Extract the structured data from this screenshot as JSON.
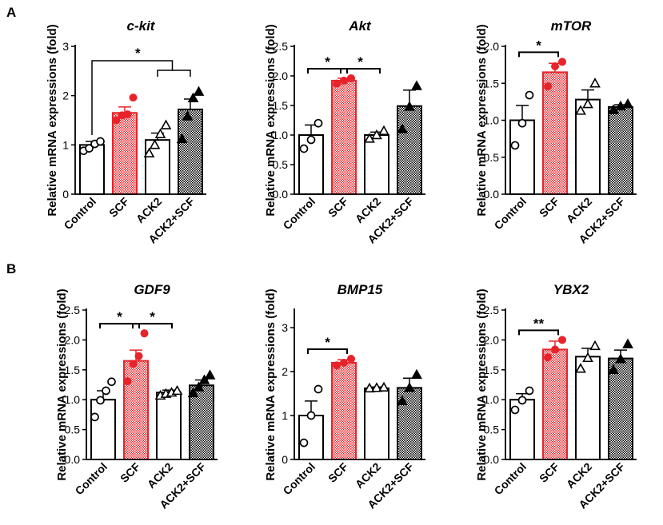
{
  "panels": {
    "a": "A",
    "b": "B"
  },
  "colors": {
    "red": "#e8232a",
    "black": "#000000",
    "white": "#ffffff"
  },
  "chart_data": [
    {
      "type": "bar",
      "title": "c-kit",
      "ylabel": "Relative mRNA expressions (fold)",
      "categories": [
        "Control",
        "SCF",
        "ACK2",
        "ACK2+SCF"
      ],
      "values": [
        1.0,
        1.65,
        1.1,
        1.72
      ],
      "errors": [
        0.07,
        0.12,
        0.14,
        0.21
      ],
      "points": [
        [
          0.88,
          0.93,
          1.02,
          1.07
        ],
        [
          1.5,
          1.6,
          1.62,
          1.96
        ],
        [
          0.83,
          1.0,
          1.22,
          1.4
        ],
        [
          1.12,
          1.58,
          1.95,
          2.08
        ]
      ],
      "ylim": [
        0,
        3
      ],
      "yticks": [
        "0",
        "1",
        "2",
        "3"
      ],
      "significance": [
        {
          "kind": "compare",
          "label": "*",
          "from": 0,
          "to": [
            2,
            3
          ]
        }
      ]
    },
    {
      "type": "bar",
      "title": "Akt",
      "ylabel": "Relative mRNA expressions (fold)",
      "categories": [
        "Control",
        "SCF",
        "ACK2",
        "ACK2+SCF"
      ],
      "values": [
        1.0,
        1.92,
        1.0,
        1.49
      ],
      "errors": [
        0.17,
        0.04,
        0.05,
        0.27
      ],
      "points": [
        [
          0.77,
          0.92,
          1.2
        ],
        [
          1.87,
          1.92,
          1.96
        ],
        [
          0.94,
          1.0,
          1.07
        ],
        [
          1.1,
          1.48,
          1.83
        ]
      ],
      "ylim": [
        0,
        2.5
      ],
      "yticks": [
        "0.0",
        "0.5",
        "1.0",
        "1.5",
        "2.0",
        "2.5"
      ],
      "significance": [
        {
          "kind": "pair",
          "label": "*",
          "from": 0,
          "to": 1
        },
        {
          "kind": "pair",
          "label": "*",
          "from": 1,
          "to": 2
        }
      ]
    },
    {
      "type": "bar",
      "title": "mTOR",
      "ylabel": "Relative mRNA expressions (fold)",
      "categories": [
        "Control",
        "SCF",
        "ACK2",
        "ACK2+SCF"
      ],
      "values": [
        1.0,
        1.65,
        1.28,
        1.18
      ],
      "errors": [
        0.2,
        0.12,
        0.13,
        0.03
      ],
      "points": [
        [
          0.66,
          0.96,
          1.34
        ],
        [
          1.46,
          1.73,
          1.79
        ],
        [
          1.13,
          1.22,
          1.5
        ],
        [
          1.14,
          1.19,
          1.22
        ]
      ],
      "ylim": [
        0,
        2
      ],
      "yticks": [
        "0.0",
        "0.5",
        "1.0",
        "1.5",
        "2.0"
      ],
      "significance": [
        {
          "kind": "pair",
          "label": "*",
          "from": 0,
          "to": 1
        }
      ]
    },
    {
      "type": "bar",
      "title": "GDF9",
      "ylabel": "Relative mRNA expressions (fold)",
      "categories": [
        "Control",
        "SCF",
        "ACK2",
        "ACK2+SCF"
      ],
      "values": [
        1.0,
        1.65,
        1.12,
        1.24
      ],
      "errors": [
        0.15,
        0.18,
        0.04,
        0.09
      ],
      "points": [
        [
          0.71,
          0.99,
          1.15,
          1.3
        ],
        [
          1.31,
          1.6,
          1.73,
          2.11
        ],
        [
          1.07,
          1.1,
          1.12,
          1.15
        ],
        [
          1.11,
          1.21,
          1.33,
          1.41
        ]
      ],
      "ylim": [
        0,
        2.5
      ],
      "yticks": [
        "0.0",
        "0.5",
        "1.0",
        "1.5",
        "2.0",
        "2.5"
      ],
      "significance": [
        {
          "kind": "pair",
          "label": "*",
          "from": 0,
          "to": 1
        },
        {
          "kind": "pair",
          "label": "*",
          "from": 1,
          "to": 2
        }
      ]
    },
    {
      "type": "bar",
      "title": "BMP15",
      "ylabel": "Relative mRNA expressions (fold)",
      "categories": [
        "Control",
        "SCF",
        "ACK2",
        "ACK2+SCF"
      ],
      "values": [
        1.0,
        2.2,
        1.62,
        1.63
      ],
      "errors": [
        0.33,
        0.07,
        0.03,
        0.22
      ],
      "points": [
        [
          0.38,
          1.0,
          1.6
        ],
        [
          2.14,
          2.2,
          2.29
        ],
        [
          1.62,
          1.63,
          1.64
        ],
        [
          1.33,
          1.63,
          1.93
        ]
      ],
      "ylim": [
        0,
        3.4
      ],
      "yticks": [
        "0",
        "1",
        "2",
        "3"
      ],
      "significance": [
        {
          "kind": "pair",
          "label": "*",
          "from": 0,
          "to": 1
        }
      ]
    },
    {
      "type": "bar",
      "title": "YBX2",
      "ylabel": "Relative mRNA expressions (fold)",
      "categories": [
        "Control",
        "SCF",
        "ACK2",
        "ACK2+SCF"
      ],
      "values": [
        1.0,
        1.84,
        1.72,
        1.69
      ],
      "errors": [
        0.1,
        0.14,
        0.14,
        0.14
      ],
      "points": [
        [
          0.83,
          0.99,
          1.15
        ],
        [
          1.71,
          1.84,
          2.0
        ],
        [
          1.52,
          1.7,
          1.9
        ],
        [
          1.5,
          1.68,
          1.93
        ]
      ],
      "ylim": [
        0,
        2.5
      ],
      "yticks": [
        "0.0",
        "0.5",
        "1.0",
        "1.5",
        "2.0",
        "2.5"
      ],
      "significance": [
        {
          "kind": "pair",
          "label": "**",
          "from": 0,
          "to": 1
        }
      ]
    }
  ]
}
